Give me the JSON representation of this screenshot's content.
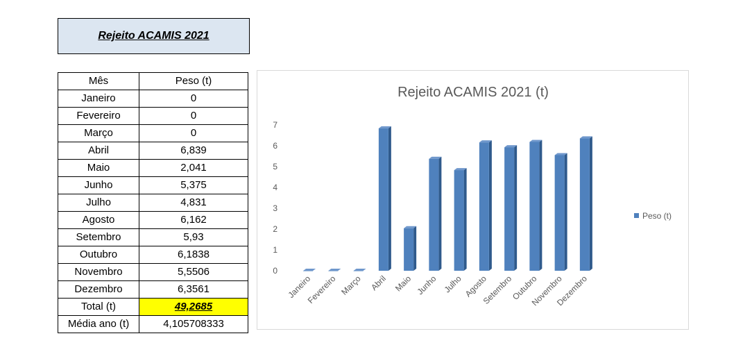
{
  "header": {
    "title": "Rejeito ACAMIS 2021"
  },
  "table": {
    "columns": [
      "Mês",
      "Peso (t)"
    ],
    "rows": [
      [
        "Janeiro",
        "0"
      ],
      [
        "Fevereiro",
        "0"
      ],
      [
        "Março",
        "0"
      ],
      [
        "Abril",
        "6,839"
      ],
      [
        "Maio",
        "2,041"
      ],
      [
        "Junho",
        "5,375"
      ],
      [
        "Julho",
        "4,831"
      ],
      [
        "Agosto",
        "6,162"
      ],
      [
        "Setembro",
        "5,93"
      ],
      [
        "Outubro",
        "6,1838"
      ],
      [
        "Novembro",
        "5,5506"
      ],
      [
        "Dezembro",
        "6,3561"
      ]
    ],
    "total_label": "Total (t)",
    "total_value": "49,2685",
    "average_label": "Média ano (t)",
    "average_value": "4,105708333"
  },
  "chart_data": {
    "type": "bar",
    "title": "Rejeito ACAMIS 2021 (t)",
    "categories": [
      "Janeiro",
      "Fevereiro",
      "Março",
      "Abril",
      "Maio",
      "Junho",
      "Julho",
      "Agosto",
      "Setembro",
      "Outubro",
      "Novembro",
      "Dezembro"
    ],
    "series": [
      {
        "name": "Peso (t)",
        "values": [
          0,
          0,
          0,
          6.839,
          2.041,
          5.375,
          4.831,
          6.162,
          5.93,
          6.1838,
          5.5506,
          6.3561
        ]
      }
    ],
    "yticks": [
      "0",
      "1",
      "2",
      "3",
      "4",
      "5",
      "6",
      "7"
    ],
    "ylim": [
      0,
      7
    ],
    "grid": false,
    "legend": "right",
    "bar_color": "#4f81bd",
    "bar_side_color": "#2f5a8c",
    "bar_top_color": "#6f97cc"
  }
}
